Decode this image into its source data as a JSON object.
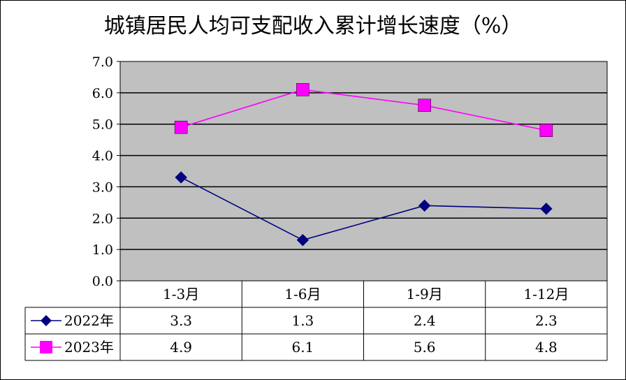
{
  "chart_data": {
    "type": "line",
    "title": "城镇居民人均可支配收入累计增长速度（%）",
    "categories": [
      "1-3月",
      "1-6月",
      "1-9月",
      "1-12月"
    ],
    "ylim": [
      0,
      7
    ],
    "y_ticks": [
      "0.0",
      "1.0",
      "2.0",
      "3.0",
      "4.0",
      "5.0",
      "6.0",
      "7.0"
    ],
    "grid": true,
    "legend": "data-table-left",
    "series": [
      {
        "name": "2022年",
        "values": [
          3.3,
          1.3,
          2.4,
          2.3
        ],
        "display": [
          "3.3",
          "1.3",
          "2.4",
          "2.3"
        ],
        "color": "#000080",
        "marker": "diamond"
      },
      {
        "name": "2023年",
        "values": [
          4.9,
          6.1,
          5.6,
          4.8
        ],
        "display": [
          "4.9",
          "6.1",
          "5.6",
          "4.8"
        ],
        "color": "#FF00FF",
        "marker": "square"
      }
    ],
    "plot_background": "#C0C0C0"
  }
}
